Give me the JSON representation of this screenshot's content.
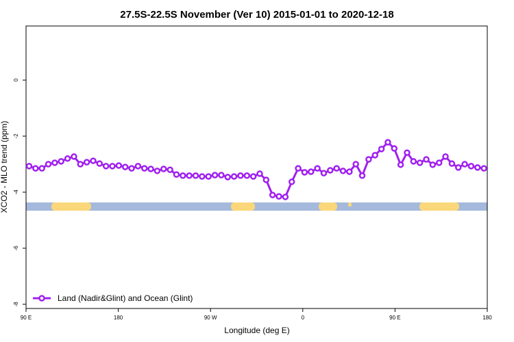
{
  "chart_data": {
    "type": "line",
    "title": "27.5S-22.5S November (Ver 10)   2015-01-01 to 2020-12-18",
    "x_label": "Longitude (deg E)",
    "y_label": "XCO2 - MLO trend (ppm)",
    "xlim": [
      90,
      540
    ],
    "ylim": [
      -8.15,
      1.93
    ],
    "xticks": [
      {
        "value": 90,
        "label": "90 E"
      },
      180,
      {
        "value": 270,
        "label": "90 W"
      },
      {
        "value": 360,
        "label": "0"
      },
      {
        "value": 450,
        "label": "90 E"
      },
      {
        "value": 540,
        "label": "180"
      }
    ],
    "yticks": [
      0,
      -2,
      -4,
      -6,
      -8
    ],
    "legend": "bottom-left",
    "x": [
      93,
      99.25,
      105.5,
      111.75,
      118,
      124.25,
      130.5,
      136.75,
      143,
      149.25,
      155.5,
      161.75,
      168,
      174.25,
      180.5,
      186.75,
      193,
      199.25,
      205.5,
      211.75,
      218,
      224.25,
      230.5,
      236.75,
      243,
      249.25,
      255.5,
      261.75,
      268,
      274.25,
      280.5,
      286.75,
      293,
      299.25,
      305.5,
      311.75,
      318,
      324.25,
      330.5,
      336.75,
      343,
      349.25,
      355.5,
      361.75,
      368,
      374.25,
      380.5,
      386.75,
      393,
      399.25,
      405.5,
      411.75,
      418,
      424.25,
      430.5,
      436.75,
      443,
      449.25,
      455.5,
      461.75,
      468,
      474.25,
      480.5,
      486.75,
      493,
      499.25,
      505.5,
      511.75,
      518,
      524.25,
      530.5,
      536.75
    ],
    "series": [
      {
        "name": "Land (Nadir&Glint) and Ocean (Glint)",
        "color": "#a020f0",
        "values": [
          -3.07,
          -3.15,
          -3.15,
          -3.0,
          -2.95,
          -2.9,
          -2.8,
          -2.73,
          -3.0,
          -2.93,
          -2.88,
          -2.98,
          -3.07,
          -3.07,
          -3.05,
          -3.1,
          -3.15,
          -3.07,
          -3.15,
          -3.17,
          -3.24,
          -3.17,
          -3.2,
          -3.37,
          -3.41,
          -3.41,
          -3.41,
          -3.44,
          -3.44,
          -3.39,
          -3.39,
          -3.46,
          -3.44,
          -3.41,
          -3.41,
          -3.44,
          -3.34,
          -3.56,
          -4.1,
          -4.15,
          -4.17,
          -3.63,
          -3.15,
          -3.29,
          -3.27,
          -3.15,
          -3.32,
          -3.22,
          -3.15,
          -3.24,
          -3.27,
          -3.0,
          -3.41,
          -2.83,
          -2.68,
          -2.46,
          -2.22,
          -2.44,
          -3.02,
          -2.59,
          -2.9,
          -2.95,
          -2.83,
          -3.02,
          -2.95,
          -2.73,
          -2.98,
          -3.12,
          -3.0,
          -3.07,
          -3.12,
          -3.15
        ]
      }
    ]
  }
}
